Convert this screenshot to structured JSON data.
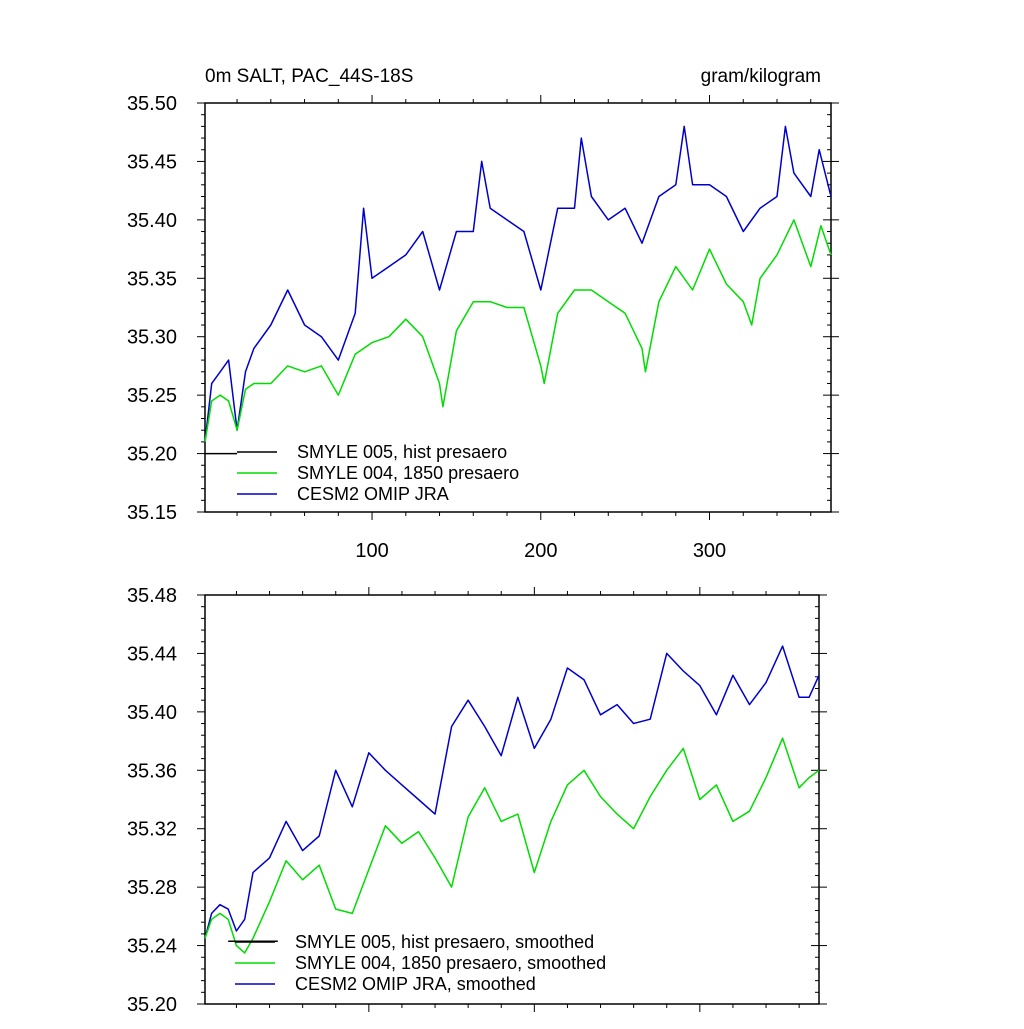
{
  "chart_data": [
    {
      "type": "line",
      "title": "0m SALT, PAC_44S-18S",
      "units": "gram/kilogram",
      "xlim": [
        1,
        372
      ],
      "ylim": [
        35.15,
        35.5
      ],
      "xticks": [
        100,
        200,
        300
      ],
      "xticklabels": [
        "100",
        "200",
        "300"
      ],
      "yticks": [
        35.15,
        35.2,
        35.25,
        35.3,
        35.35,
        35.4,
        35.45,
        35.5
      ],
      "yticklabels": [
        "35.15",
        "35.20",
        "35.25",
        "35.30",
        "35.35",
        "35.40",
        "35.45",
        "35.50"
      ],
      "legend_position": "lower-left",
      "series": [
        {
          "name": "SMYLE 005, hist presaero",
          "color": "#000000",
          "x": [
            1,
            20
          ],
          "values": [
            35.2,
            35.2
          ]
        },
        {
          "name": "SMYLE 004, 1850 presaero",
          "color": "#00dd00",
          "x": [
            1,
            5,
            10,
            15,
            20,
            25,
            30,
            40,
            50,
            60,
            70,
            80,
            90,
            100,
            110,
            120,
            130,
            140,
            142,
            150,
            160,
            170,
            180,
            190,
            200,
            202,
            210,
            220,
            230,
            240,
            250,
            260,
            262,
            270,
            280,
            290,
            300,
            310,
            320,
            325,
            330,
            340,
            350,
            360,
            366,
            372
          ],
          "values": [
            35.21,
            35.245,
            35.25,
            35.245,
            35.22,
            35.255,
            35.26,
            35.26,
            35.275,
            35.27,
            35.275,
            35.25,
            35.285,
            35.295,
            35.3,
            35.315,
            35.3,
            35.26,
            35.24,
            35.305,
            35.33,
            35.33,
            35.325,
            35.325,
            35.275,
            35.26,
            35.32,
            35.34,
            35.34,
            35.33,
            35.32,
            35.29,
            35.27,
            35.33,
            35.36,
            35.34,
            35.375,
            35.345,
            35.33,
            35.31,
            35.35,
            35.37,
            35.4,
            35.36,
            35.395,
            35.37
          ]
        },
        {
          "name": "CESM2 OMIP JRA",
          "color": "#0000cc",
          "x": [
            1,
            5,
            10,
            15,
            20,
            25,
            30,
            40,
            50,
            60,
            70,
            80,
            90,
            95,
            100,
            110,
            120,
            130,
            140,
            150,
            160,
            165,
            170,
            180,
            190,
            200,
            210,
            220,
            224,
            230,
            240,
            250,
            260,
            270,
            280,
            285,
            290,
            300,
            310,
            320,
            330,
            340,
            345,
            350,
            360,
            365,
            372
          ],
          "values": [
            35.21,
            35.26,
            35.27,
            35.28,
            35.22,
            35.27,
            35.29,
            35.31,
            35.34,
            35.31,
            35.3,
            35.28,
            35.32,
            35.41,
            35.35,
            35.36,
            35.37,
            35.39,
            35.34,
            35.39,
            35.39,
            35.45,
            35.41,
            35.4,
            35.39,
            35.34,
            35.41,
            35.41,
            35.47,
            35.42,
            35.4,
            35.41,
            35.38,
            35.42,
            35.43,
            35.48,
            35.43,
            35.43,
            35.42,
            35.39,
            35.41,
            35.42,
            35.48,
            35.44,
            35.42,
            35.46,
            35.42
          ]
        }
      ]
    },
    {
      "type": "line",
      "title": "",
      "xlim": [
        1,
        372
      ],
      "ylim": [
        35.2,
        35.48
      ],
      "xticks": [
        100,
        200,
        300
      ],
      "yticks": [
        35.2,
        35.24,
        35.28,
        35.32,
        35.36,
        35.4,
        35.44,
        35.48
      ],
      "yticklabels": [
        "35.20",
        "35.24",
        "35.28",
        "35.32",
        "35.36",
        "35.40",
        "35.44",
        "35.48"
      ],
      "legend_position": "lower-left",
      "series": [
        {
          "name": "SMYLE 005, hist presaero, smoothed",
          "color": "#000000",
          "x": [
            15,
            45
          ],
          "values": [
            35.243,
            35.243
          ]
        },
        {
          "name": "SMYLE 004, 1850 presaero, smoothed",
          "color": "#00dd00",
          "x": [
            1,
            5,
            10,
            15,
            20,
            25,
            30,
            40,
            50,
            60,
            70,
            80,
            90,
            100,
            110,
            120,
            130,
            140,
            150,
            160,
            170,
            180,
            190,
            200,
            210,
            220,
            230,
            240,
            250,
            260,
            270,
            280,
            290,
            300,
            310,
            320,
            330,
            340,
            350,
            360,
            366,
            372
          ],
          "values": [
            35.245,
            35.258,
            35.262,
            35.258,
            35.24,
            35.235,
            35.245,
            35.27,
            35.298,
            35.285,
            35.295,
            35.265,
            35.262,
            35.292,
            35.322,
            35.31,
            35.318,
            35.3,
            35.28,
            35.328,
            35.348,
            35.325,
            35.33,
            35.29,
            35.325,
            35.35,
            35.36,
            35.342,
            35.33,
            35.32,
            35.342,
            35.36,
            35.375,
            35.34,
            35.35,
            35.325,
            35.332,
            35.355,
            35.382,
            35.348,
            35.355,
            35.36
          ]
        },
        {
          "name": "CESM2 OMIP JRA, smoothed",
          "color": "#0000cc",
          "x": [
            1,
            5,
            10,
            15,
            20,
            25,
            30,
            40,
            50,
            60,
            70,
            80,
            90,
            100,
            110,
            120,
            130,
            140,
            150,
            160,
            170,
            180,
            190,
            200,
            210,
            220,
            230,
            240,
            250,
            260,
            270,
            280,
            290,
            300,
            310,
            320,
            330,
            340,
            350,
            360,
            366,
            372
          ],
          "values": [
            35.245,
            35.262,
            35.268,
            35.265,
            35.25,
            35.258,
            35.29,
            35.3,
            35.325,
            35.305,
            35.315,
            35.36,
            35.335,
            35.372,
            35.36,
            35.35,
            35.34,
            35.33,
            35.39,
            35.408,
            35.39,
            35.37,
            35.41,
            35.375,
            35.395,
            35.43,
            35.422,
            35.398,
            35.405,
            35.392,
            35.395,
            35.44,
            35.428,
            35.418,
            35.398,
            35.425,
            35.405,
            35.42,
            35.445,
            35.41,
            35.41,
            35.425
          ]
        }
      ]
    }
  ]
}
